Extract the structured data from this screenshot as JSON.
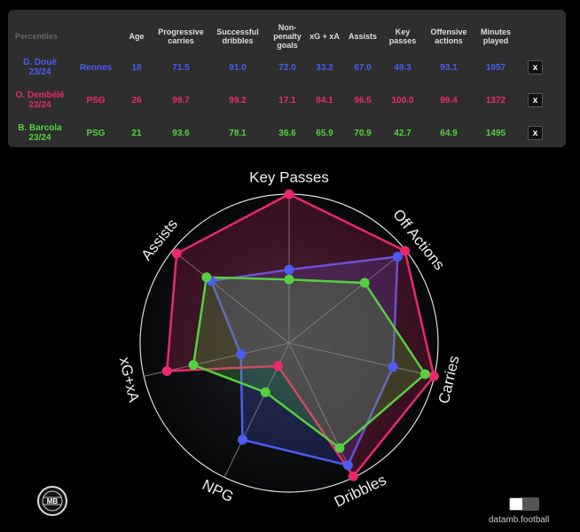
{
  "table": {
    "headers": {
      "percentiles": "Percentiles",
      "age": "Age",
      "carries": "Progressive carries",
      "dribbles": "Successful dribbles",
      "npg": "Non-penalty goals",
      "xgxa": "xG + xA",
      "assists": "Assists",
      "keypasses": "Key passes",
      "offactions": "Offensive actions",
      "minutes": "Minutes played"
    },
    "remove_label": "x",
    "rows": [
      {
        "player": "D. Douè 23/24",
        "team": "Rennes",
        "age": "18",
        "carries": "71.5",
        "dribbles": "91.0",
        "npg": "72.0",
        "xgxa": "33.2",
        "assists": "67.0",
        "keypasses": "49.3",
        "offactions": "93.1",
        "minutes": "1057",
        "color": "#4a5df0"
      },
      {
        "player": "O. Dembélé 23/24",
        "team": "PSG",
        "age": "26",
        "carries": "99.7",
        "dribbles": "99.2",
        "npg": "17.1",
        "xgxa": "84.1",
        "assists": "96.5",
        "keypasses": "100.0",
        "offactions": "99.4",
        "minutes": "1372",
        "color": "#e8296e"
      },
      {
        "player": "B. Barcola 23/24",
        "team": "PSG",
        "age": "21",
        "carries": "93.6",
        "dribbles": "78.1",
        "npg": "36.6",
        "xgxa": "65.9",
        "assists": "70.9",
        "keypasses": "42.7",
        "offactions": "64.9",
        "minutes": "1495",
        "color": "#55d040"
      }
    ]
  },
  "chart_data": {
    "type": "radar",
    "axes": [
      "Key Passes",
      "Off Actions",
      "Carries",
      "Dribbles",
      "NPG",
      "xG+xA",
      "Assists"
    ],
    "range": [
      0,
      100
    ],
    "series": [
      {
        "name": "D. Douè 23/24",
        "values": [
          49.3,
          93.1,
          71.5,
          91.0,
          72.0,
          33.2,
          67.0
        ],
        "color": "#4a5df0"
      },
      {
        "name": "O. Dembélé 23/24",
        "values": [
          100.0,
          99.4,
          99.7,
          99.2,
          17.1,
          84.1,
          96.5
        ],
        "color": "#e8296e"
      },
      {
        "name": "B. Barcola 23/24",
        "values": [
          42.7,
          64.9,
          93.6,
          78.1,
          36.6,
          65.9,
          70.9
        ],
        "color": "#55d040"
      }
    ]
  },
  "footer": {
    "credit": "datamb.football",
    "logo_text": "MB"
  }
}
